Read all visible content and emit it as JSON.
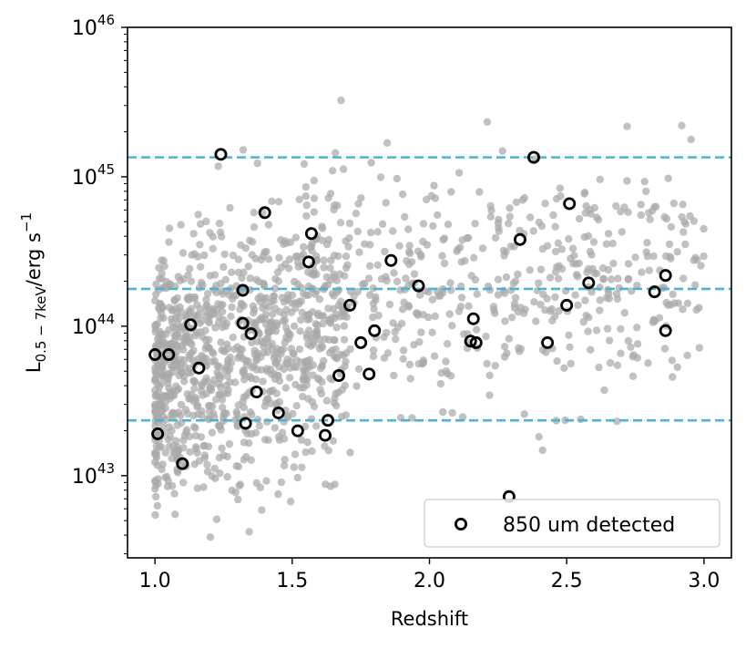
{
  "chart_data": {
    "type": "scatter",
    "xlabel": "Redshift",
    "ylabel": "L",
    "ylabel_sub": "0.5 − 7keV",
    "ylabel_unit": "/erg s",
    "ylabel_sup": "−1",
    "xlim": [
      0.9,
      3.1
    ],
    "ylim": [
      42.45,
      46.0
    ],
    "yscale": "log",
    "grid": false,
    "legend_position": "lower-right",
    "x_ticks": [
      {
        "value": 1.0,
        "label": "1.0"
      },
      {
        "value": 1.5,
        "label": "1.5"
      },
      {
        "value": 2.0,
        "label": "2.0"
      },
      {
        "value": 2.5,
        "label": "2.5"
      },
      {
        "value": 3.0,
        "label": "3.0"
      }
    ],
    "y_ticks": [
      {
        "exp": 43,
        "base": "10",
        "sup": "43"
      },
      {
        "exp": 44,
        "base": "10",
        "sup": "44"
      },
      {
        "exp": 45,
        "base": "10",
        "sup": "45"
      },
      {
        "exp": 46,
        "base": "10",
        "sup": "46"
      }
    ],
    "hlines_log": [
      43.37,
      44.25,
      45.13
    ],
    "colors": {
      "background_points": "#a9a9a9",
      "detected_edge": "#000000",
      "hlines": "#4bb3d3"
    },
    "series": [
      {
        "name": "850 um detected",
        "style": "open-circle",
        "points": [
          [
            1.24,
            45.15
          ],
          [
            2.38,
            45.13
          ],
          [
            1.4,
            44.76
          ],
          [
            2.51,
            44.82
          ],
          [
            1.57,
            44.62
          ],
          [
            2.33,
            44.58
          ],
          [
            1.56,
            44.43
          ],
          [
            1.86,
            44.44
          ],
          [
            1.96,
            44.27
          ],
          [
            2.58,
            44.29
          ],
          [
            2.86,
            44.34
          ],
          [
            1.32,
            44.24
          ],
          [
            2.82,
            44.23
          ],
          [
            1.71,
            44.14
          ],
          [
            2.5,
            44.14
          ],
          [
            2.16,
            44.05
          ],
          [
            1.13,
            44.01
          ],
          [
            1.32,
            44.02
          ],
          [
            1.35,
            43.95
          ],
          [
            1.8,
            43.97
          ],
          [
            2.86,
            43.97
          ],
          [
            1.75,
            43.89
          ],
          [
            2.15,
            43.9
          ],
          [
            2.17,
            43.89
          ],
          [
            2.43,
            43.89
          ],
          [
            1.0,
            43.81
          ],
          [
            1.05,
            43.81
          ],
          [
            1.16,
            43.72
          ],
          [
            1.67,
            43.67
          ],
          [
            1.78,
            43.68
          ],
          [
            1.37,
            43.56
          ],
          [
            1.45,
            43.42
          ],
          [
            1.63,
            43.37
          ],
          [
            1.33,
            43.35
          ],
          [
            1.52,
            43.3
          ],
          [
            1.62,
            43.27
          ],
          [
            1.01,
            43.28
          ],
          [
            1.1,
            43.08
          ],
          [
            2.29,
            42.86
          ]
        ]
      },
      {
        "name": "",
        "style": "gray-filled",
        "random_points": {
          "count": 1500,
          "seed": 12345
        }
      }
    ]
  }
}
